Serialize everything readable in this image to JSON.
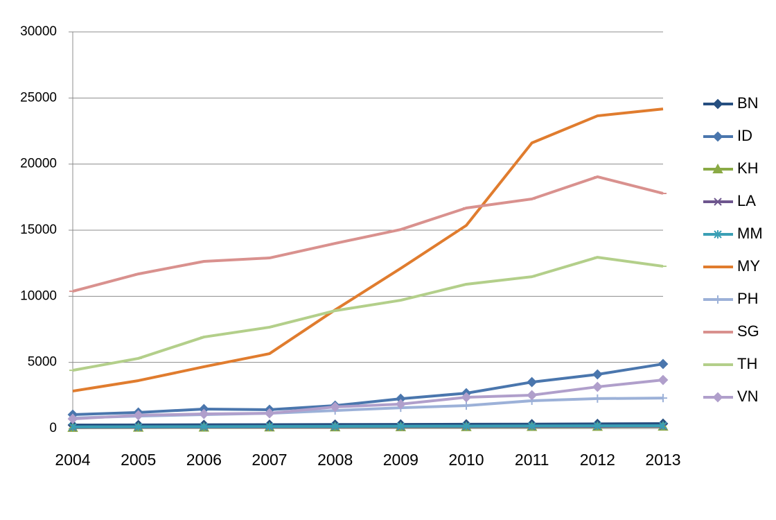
{
  "chart_data": {
    "type": "line",
    "categories": [
      "2004",
      "2005",
      "2006",
      "2007",
      "2008",
      "2009",
      "2010",
      "2011",
      "2012",
      "2013"
    ],
    "ylim": [
      0,
      30000
    ],
    "yticks": [
      0,
      5000,
      10000,
      15000,
      20000,
      25000,
      30000
    ],
    "grid": true,
    "legend": "right",
    "series": [
      {
        "name": "BN",
        "color": "#264f80",
        "marker": "diamond",
        "values": [
          260,
          270,
          280,
          290,
          300,
          310,
          320,
          330,
          350,
          370
        ]
      },
      {
        "name": "ID",
        "color": "#4a76ad",
        "marker": "diamond",
        "values": [
          1050,
          1210,
          1470,
          1420,
          1730,
          2250,
          2670,
          3510,
          4090,
          4880
        ]
      },
      {
        "name": "KH",
        "color": "#8aaa45",
        "marker": "triangle",
        "values": [
          60,
          70,
          80,
          90,
          100,
          110,
          120,
          130,
          140,
          150
        ]
      },
      {
        "name": "LA",
        "color": "#6e568e",
        "marker": "x",
        "values": [
          80,
          90,
          100,
          110,
          120,
          130,
          140,
          150,
          160,
          170
        ]
      },
      {
        "name": "MM",
        "color": "#3a9fb5",
        "marker": "asterisk",
        "values": [
          120,
          130,
          140,
          150,
          160,
          170,
          180,
          190,
          200,
          210
        ]
      },
      {
        "name": "MY",
        "color": "#e07c2e",
        "marker": "none",
        "values": [
          2830,
          3620,
          4670,
          5660,
          8970,
          12110,
          15360,
          21600,
          23650,
          24170
        ]
      },
      {
        "name": "PH",
        "color": "#9cb1d8",
        "marker": "plus",
        "values": [
          790,
          940,
          1050,
          1150,
          1360,
          1570,
          1730,
          2100,
          2260,
          2300
        ]
      },
      {
        "name": "SG",
        "color": "#d9918e",
        "marker": "dash",
        "values": [
          10380,
          11690,
          12640,
          12900,
          14000,
          15050,
          16680,
          17360,
          19040,
          17780
        ]
      },
      {
        "name": "TH",
        "color": "#b3cf8a",
        "marker": "dash",
        "values": [
          4400,
          5300,
          6920,
          7660,
          8910,
          9700,
          10910,
          11480,
          12950,
          12270
        ]
      },
      {
        "name": "VN",
        "color": "#b09fcb",
        "marker": "diamond",
        "values": [
          730,
          1000,
          1100,
          1150,
          1630,
          1840,
          2360,
          2520,
          3150,
          3670
        ]
      }
    ]
  }
}
